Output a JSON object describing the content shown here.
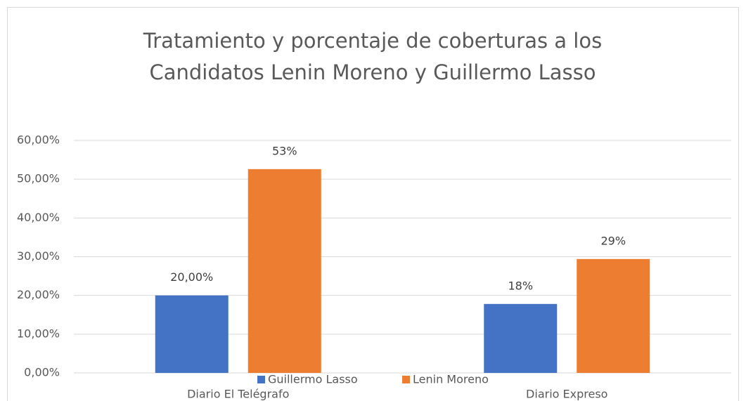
{
  "chart_data": {
    "type": "bar",
    "title": [
      "Tratamiento y porcentaje de coberturas a los",
      "Candidatos Lenin Moreno y Guillermo Lasso"
    ],
    "categories": [
      "Diario El Telégrafo",
      "Diario Expreso"
    ],
    "series": [
      {
        "name": "Guillermo Lasso",
        "color": "#4472c4",
        "values": [
          20,
          17.8
        ],
        "value_labels": [
          "20,00%",
          "18%"
        ]
      },
      {
        "name": "Lenin Moreno",
        "color": "#ed7d31",
        "values": [
          52.6,
          29.4
        ],
        "value_labels": [
          "53%",
          "29%"
        ]
      }
    ],
    "ylim": [
      0,
      60
    ],
    "yticks": [
      {
        "value": 0,
        "label": "0,00%"
      },
      {
        "value": 10,
        "label": "10,00%"
      },
      {
        "value": 20,
        "label": "20,00%"
      },
      {
        "value": 30,
        "label": "30,00%"
      },
      {
        "value": 40,
        "label": "40,00%"
      },
      {
        "value": 50,
        "label": "50,00%"
      },
      {
        "value": 60,
        "label": "60,00%"
      }
    ],
    "grid": true,
    "legend": "bottom"
  }
}
